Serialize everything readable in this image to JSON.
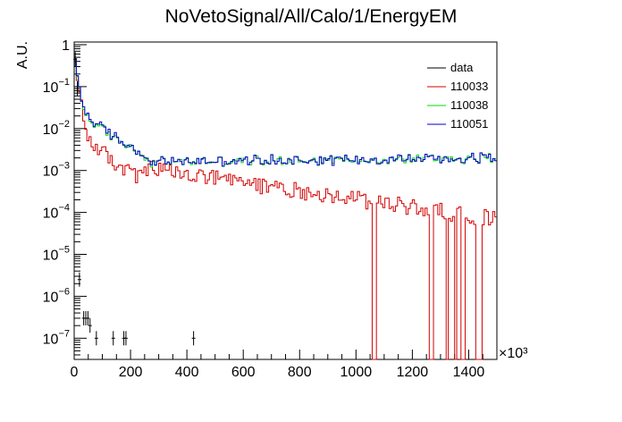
{
  "chart_data": {
    "type": "line",
    "title": "NoVetoSignal/All/Calo/1/EnergyEM",
    "ylabel": "A.U.",
    "xlabel": "",
    "x_multiplier_label": "×10³",
    "x_unit_scale": 1000,
    "log_y": true,
    "xlim": [
      0,
      1500
    ],
    "ylim": [
      3e-08,
      1.2
    ],
    "grid": false,
    "legend_position": "top-right",
    "x_ticks": [
      0,
      200,
      400,
      600,
      800,
      1000,
      1200,
      1400
    ],
    "x_tick_labels": [
      "0",
      "200",
      "400",
      "600",
      "800",
      "1000",
      "1200",
      "1400"
    ],
    "y_ticks": [
      1e-07,
      1e-06,
      1e-05,
      0.0001,
      0.001,
      0.01,
      0.1,
      1
    ],
    "y_tick_labels": [
      {
        "base": "10",
        "exp": "−7"
      },
      {
        "base": "10",
        "exp": "−6"
      },
      {
        "base": "10",
        "exp": "−5"
      },
      {
        "base": "10",
        "exp": "−4"
      },
      {
        "base": "10",
        "exp": "−3"
      },
      {
        "base": "10",
        "exp": "−2"
      },
      {
        "base": "10",
        "exp": "−1"
      },
      {
        "base": "1",
        "exp": ""
      }
    ],
    "bin_width": 7.5,
    "series": [
      {
        "name": "data",
        "color": "#000000",
        "style": "points",
        "points": [
          {
            "x": 3.75,
            "y": 0.45
          },
          {
            "x": 11.25,
            "y": 0.09
          },
          {
            "x": 18.75,
            "y": 2.5e-06
          },
          {
            "x": 33.75,
            "y": 3e-07
          },
          {
            "x": 41.25,
            "y": 3e-07
          },
          {
            "x": 48.75,
            "y": 3e-07
          },
          {
            "x": 56.25,
            "y": 2e-07
          },
          {
            "x": 78.75,
            "y": 1e-07
          },
          {
            "x": 138.75,
            "y": 1e-07
          },
          {
            "x": 176.25,
            "y": 1e-07
          },
          {
            "x": 183.75,
            "y": 1e-07
          },
          {
            "x": 423.75,
            "y": 1e-07
          }
        ]
      },
      {
        "name": "110033",
        "color": "#d40000",
        "style": "hist",
        "values": []
      },
      {
        "name": "110038",
        "color": "#00dd00",
        "style": "hist",
        "values": []
      },
      {
        "name": "110051",
        "color": "#0000cc",
        "style": "hist",
        "values": []
      }
    ]
  }
}
